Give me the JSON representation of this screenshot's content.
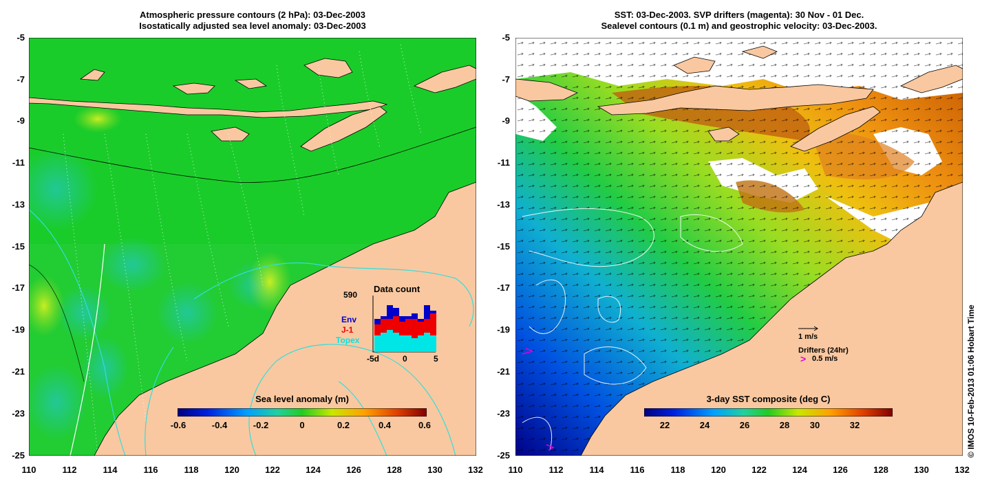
{
  "left_panel": {
    "title_line1": "Atmospheric pressure contours (2 hPa): 03-Dec-2003",
    "title_line2": "Isostatically adjusted sea level anomaly: 03-Dec-2003",
    "y_ticks": [
      "-5",
      "-7",
      "-9",
      "-11",
      "-13",
      "-15",
      "-17",
      "-19",
      "-21",
      "-23",
      "-25"
    ],
    "x_ticks": [
      "110",
      "112",
      "114",
      "116",
      "118",
      "120",
      "122",
      "124",
      "126",
      "128",
      "130",
      "132"
    ],
    "colorbar": {
      "label": "Sea level anomaly (m)",
      "ticks": [
        "-0.6",
        "-0.4",
        "-0.2",
        "0",
        "0.2",
        "0.4",
        "0.6"
      ],
      "range": [
        -0.6,
        0.6
      ]
    },
    "inset": {
      "title": "Data count",
      "max_value": "590",
      "legend_env": "Env",
      "legend_j1": "J-1",
      "legend_topex": "Topex",
      "x_labels": [
        "-5d",
        "0",
        "5"
      ],
      "bars": [
        {
          "topex": 0.3,
          "j1": 0.2,
          "env": 0.1
        },
        {
          "topex": 0.35,
          "j1": 0.25,
          "env": 0.05
        },
        {
          "topex": 0.4,
          "j1": 0.2,
          "env": 0.25
        },
        {
          "topex": 0.35,
          "j1": 0.3,
          "env": 0.15
        },
        {
          "topex": 0.3,
          "j1": 0.25,
          "env": 0.1
        },
        {
          "topex": 0.3,
          "j1": 0.3,
          "env": 0.05
        },
        {
          "topex": 0.25,
          "j1": 0.35,
          "env": 0.1
        },
        {
          "topex": 0.3,
          "j1": 0.25,
          "env": 0.05
        },
        {
          "topex": 0.35,
          "j1": 0.25,
          "env": 0.25
        },
        {
          "topex": 0.3,
          "j1": 0.4,
          "env": 0.05
        }
      ],
      "colors": {
        "env": "#0000cc",
        "j1": "#ee0000",
        "topex": "#00e5e5"
      }
    }
  },
  "right_panel": {
    "title_line1": "SST: 03-Dec-2003. SVP drifters (magenta): 30 Nov - 01 Dec.",
    "title_line2": "Sealevel contours (0.1 m) and geostrophic velocity: 03-Dec-2003.",
    "y_ticks": [
      "-5",
      "-7",
      "-9",
      "-11",
      "-13",
      "-15",
      "-17",
      "-19",
      "-21",
      "-23",
      "-25"
    ],
    "x_ticks": [
      "110",
      "112",
      "114",
      "116",
      "118",
      "120",
      "122",
      "124",
      "126",
      "128",
      "130",
      "132"
    ],
    "colorbar": {
      "label": "3-day SST composite (deg C)",
      "ticks": [
        "22",
        "24",
        "26",
        "28",
        "30",
        "32"
      ],
      "range": [
        21,
        33.5
      ]
    },
    "velocity_scale_label": "1 m/s",
    "drifters_label": "Drifters (24hr)",
    "drifter_scale_label": "0.5 m/s"
  },
  "copyright": "© IMOS 10-Feb-2013 01:06 Hobart Time",
  "colors": {
    "land": "#f9c8a0",
    "sea_green": "#22cc22",
    "no_data": "#ffffff",
    "contour_cyan": "#33dddd",
    "drifter_magenta": "#dd00dd"
  }
}
